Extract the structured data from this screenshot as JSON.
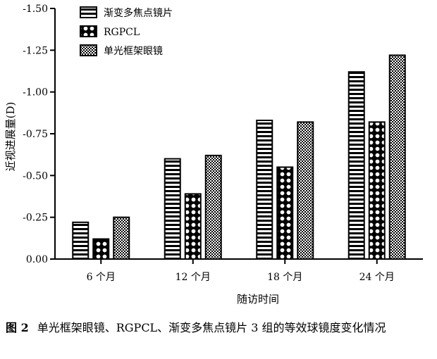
{
  "chart_data": {
    "type": "bar",
    "categories": [
      "6 个月",
      "12 个月",
      "18 个月",
      "24 个月"
    ],
    "series": [
      {
        "name": "渐变多焦点镜片",
        "values": [
          -0.22,
          -0.6,
          -0.83,
          -1.12
        ],
        "pattern": "horizontal-stripes"
      },
      {
        "name": "RGPCL",
        "values": [
          -0.12,
          -0.39,
          -0.55,
          -0.82
        ],
        "pattern": "diamond-checks"
      },
      {
        "name": "单光框架眼镜",
        "values": [
          -0.25,
          -0.62,
          -0.82,
          -1.22
        ],
        "pattern": "fine-checks"
      }
    ],
    "xlabel": "随访时间",
    "ylabel": "近视进展量(D)",
    "ylim": [
      0,
      -1.5
    ],
    "yticks": [
      0,
      -0.25,
      -0.5,
      -0.75,
      -1.0,
      -1.25,
      -1.5
    ],
    "ytick_labels": [
      "0.00",
      "-0.25",
      "-0.50",
      "-0.75",
      "-1.00",
      "-1.25",
      "-1.50"
    ],
    "legend_position": "top-left",
    "grid": false
  },
  "caption": {
    "label": "图 2",
    "text": "单光框架眼镜、RGPCL、渐变多焦点镜片 3 组的等效球镜度变化情况"
  },
  "colors": {
    "ink": "#000000",
    "background": "#ffffff"
  }
}
